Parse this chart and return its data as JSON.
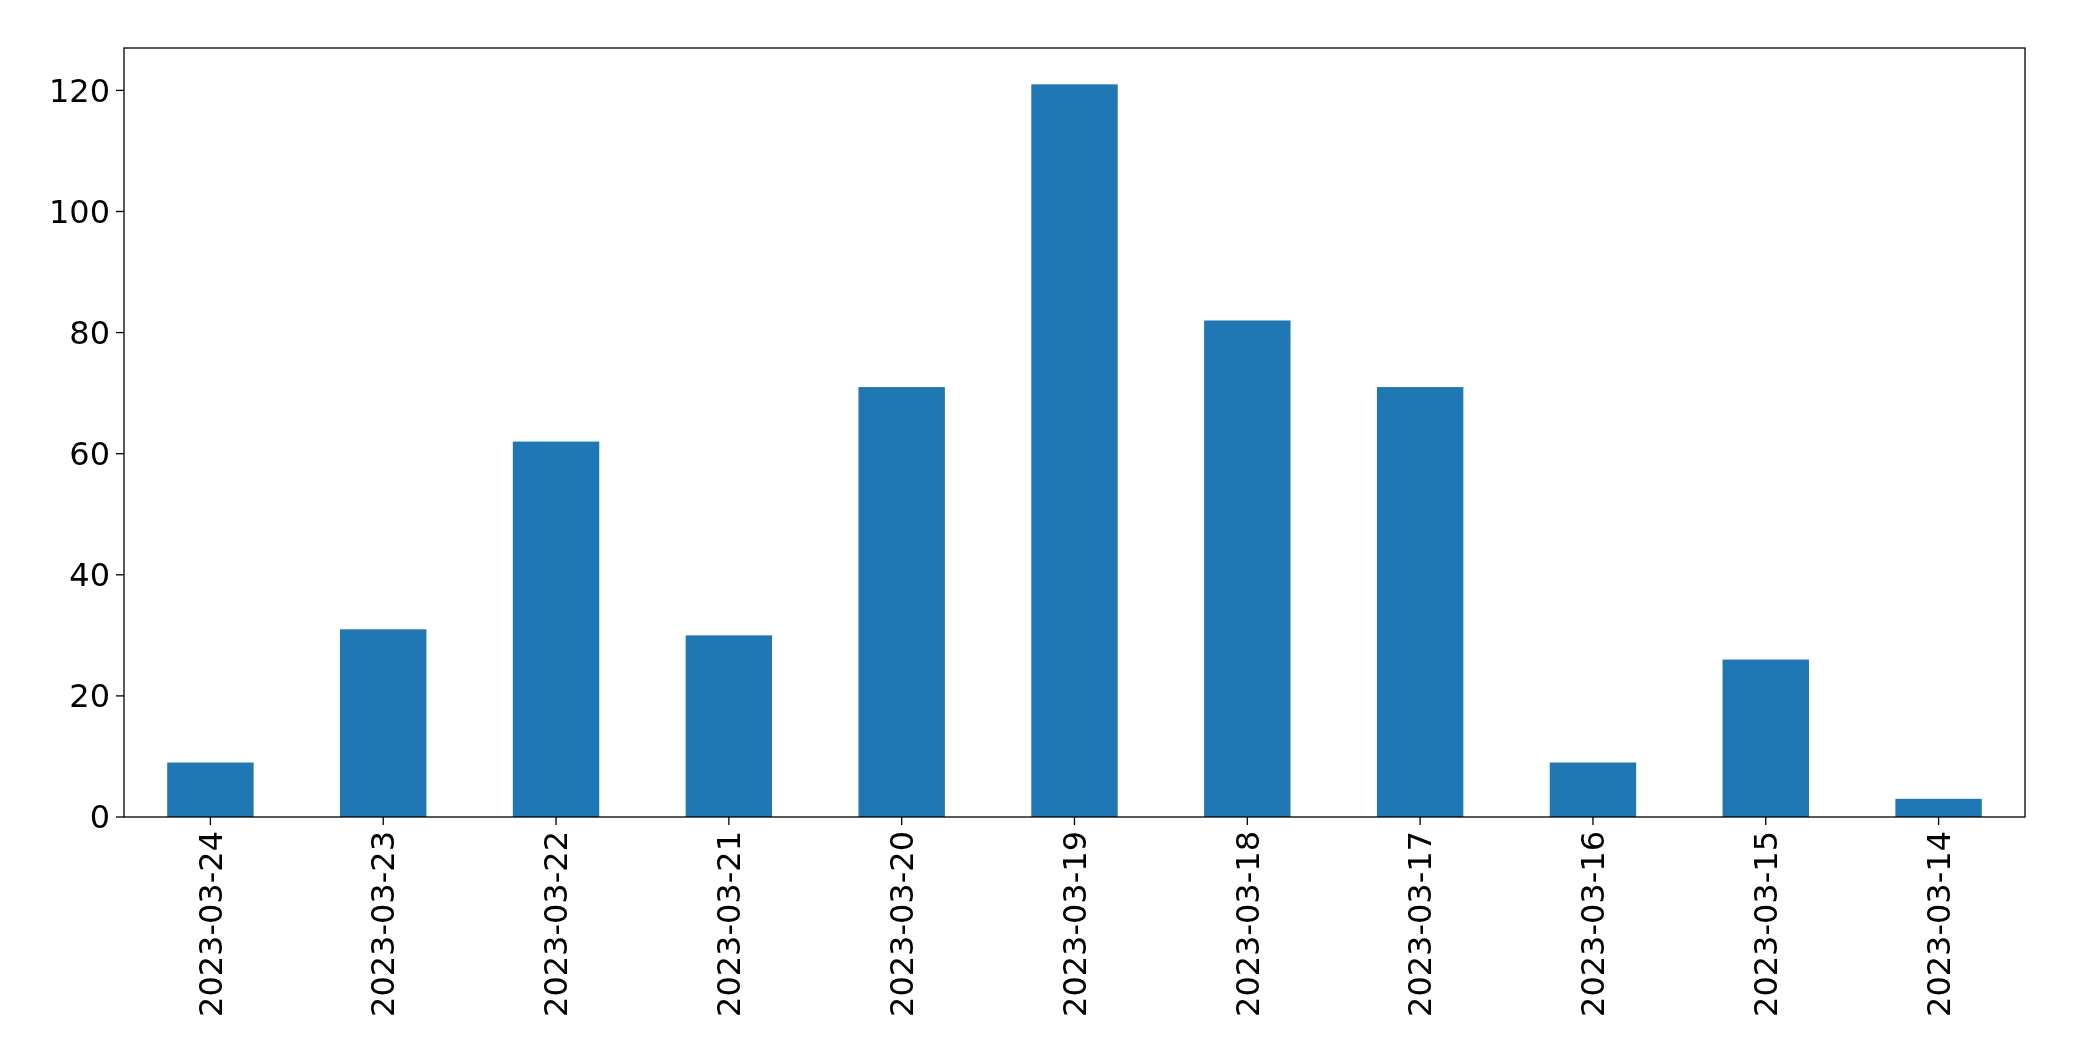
{
  "chart_data": {
    "type": "bar",
    "categories": [
      "2023-03-24",
      "2023-03-23",
      "2023-03-22",
      "2023-03-21",
      "2023-03-20",
      "2023-03-19",
      "2023-03-18",
      "2023-03-17",
      "2023-03-16",
      "2023-03-15",
      "2023-03-14"
    ],
    "values": [
      9,
      31,
      62,
      30,
      71,
      121,
      82,
      71,
      9,
      26,
      3
    ],
    "color": "#1f77b4",
    "ylim": [
      0,
      127
    ],
    "yticks": [
      0,
      20,
      40,
      60,
      80,
      100,
      120
    ]
  }
}
